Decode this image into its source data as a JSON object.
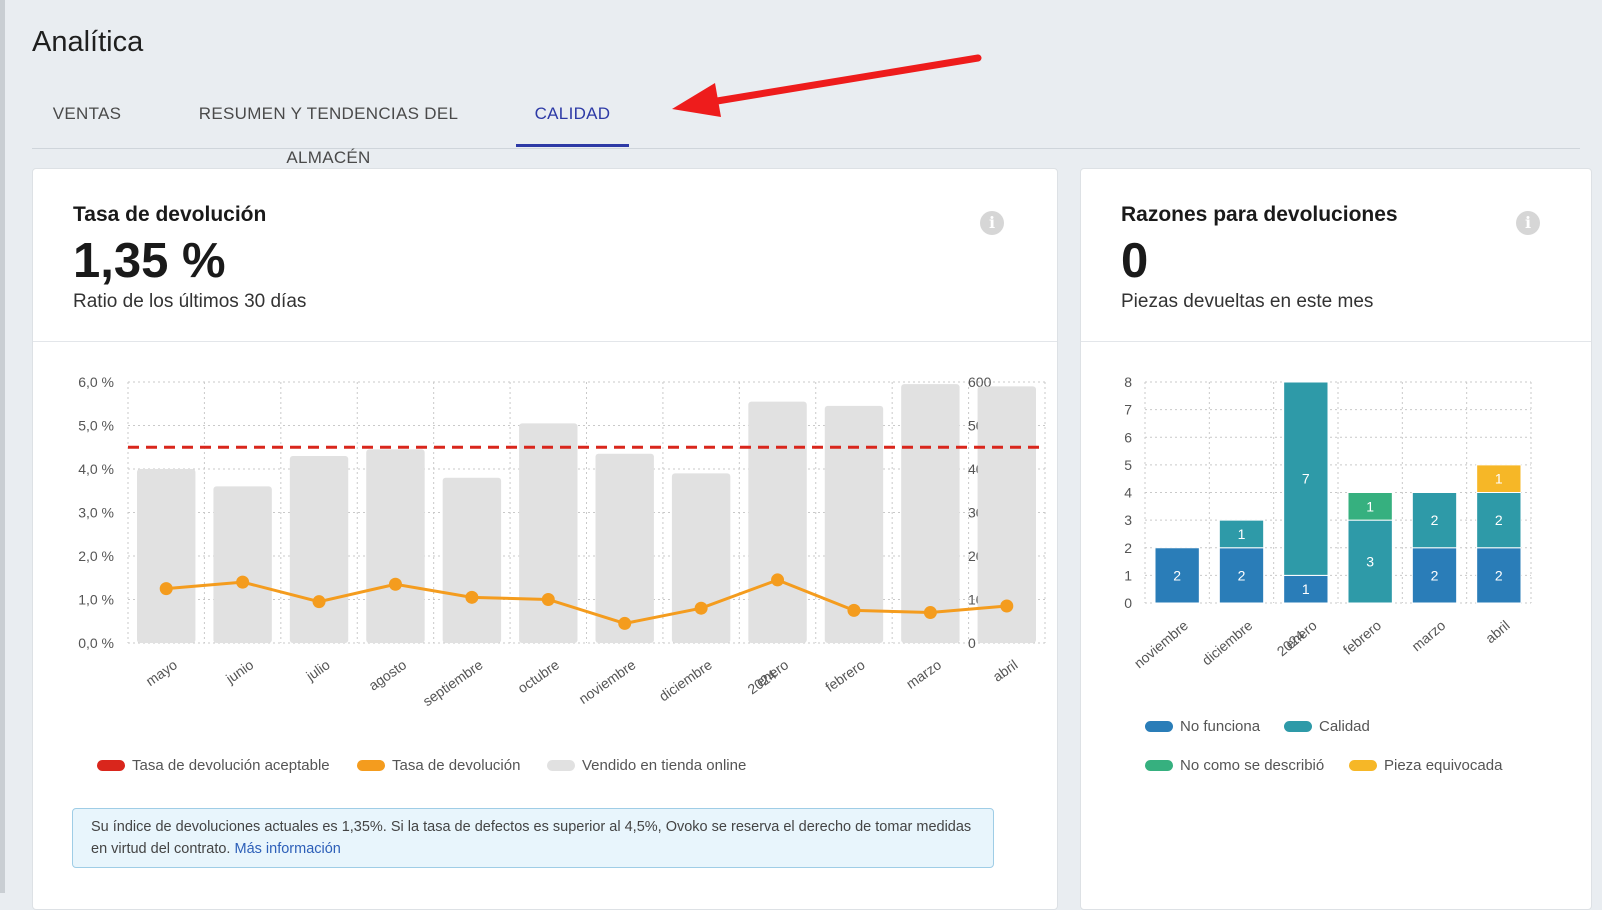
{
  "page": {
    "title": "Analítica"
  },
  "tabs": [
    {
      "label": "VENTAS",
      "active": false
    },
    {
      "label": "RESUMEN Y TENDENCIAS DEL ALMACÉN",
      "active": false
    },
    {
      "label": "CALIDAD",
      "active": true
    }
  ],
  "return_rate_card": {
    "title": "Tasa de devolución",
    "value": "1,35 %",
    "subtitle": "Ratio de los últimos 30 días",
    "info_icon": "info-icon",
    "legend": [
      {
        "label": "Tasa de devolución aceptable",
        "color": "#d9261c"
      },
      {
        "label": "Tasa de devolución",
        "color": "#f49c1e"
      },
      {
        "label": "Vendido en tienda online",
        "color": "#e1e1e1"
      }
    ],
    "notice": {
      "text": "Su índice de devoluciones actuales es 1,35%. Si la tasa de defectos es superior al 4,5%, Ovoko se reserva el derecho de tomar medidas en virtud del contrato.",
      "link": "Más información"
    }
  },
  "reasons_card": {
    "title": "Razones para devoluciones",
    "value": "0",
    "subtitle": "Piezas devueltas en este mes",
    "info_icon": "info-icon",
    "legend": [
      {
        "label": "No funciona",
        "color": "#2a7db8"
      },
      {
        "label": "Calidad",
        "color": "#2e9aa8"
      },
      {
        "label": "No como se describió",
        "color": "#36b07f"
      },
      {
        "label": "Pieza equivocada",
        "color": "#f6b727"
      }
    ]
  },
  "chart_data": [
    {
      "type": "bar",
      "categories": [
        "mayo",
        "junio",
        "julio",
        "agosto",
        "septiembre",
        "octubre",
        "noviembre",
        "diciembre",
        "enero 2024",
        "febrero",
        "marzo",
        "abril"
      ],
      "category_labels": [
        [
          "mayo"
        ],
        [
          "junio"
        ],
        [
          "julio"
        ],
        [
          "agosto"
        ],
        [
          "septiembre"
        ],
        [
          "octubre"
        ],
        [
          "noviembre"
        ],
        [
          "diciembre"
        ],
        [
          "enero",
          "2024"
        ],
        [
          "febrero"
        ],
        [
          "marzo"
        ],
        [
          "abril"
        ]
      ],
      "series": [
        {
          "name": "Vendido en tienda online",
          "type": "bar",
          "axis": "right",
          "color": "#e1e1e1",
          "values": [
            400,
            360,
            430,
            445,
            380,
            505,
            435,
            390,
            555,
            545,
            595,
            590
          ]
        },
        {
          "name": "Tasa de devolución",
          "type": "line",
          "axis": "left",
          "color": "#f49c1e",
          "values": [
            1.25,
            1.4,
            0.95,
            1.35,
            1.05,
            1.0,
            0.45,
            0.8,
            1.45,
            0.75,
            0.7,
            0.85
          ]
        },
        {
          "name": "Tasa de devolución aceptable",
          "type": "threshold",
          "axis": "left",
          "color": "#d9261c",
          "value": 4.5
        }
      ],
      "left_axis": {
        "ylim": [
          0,
          6
        ],
        "ticks": [
          "0,0 %",
          "1,0 %",
          "2,0 %",
          "3,0 %",
          "4,0 %",
          "5,0 %",
          "6,0 %"
        ]
      },
      "right_axis": {
        "ylim": [
          0,
          600
        ],
        "ticks": [
          "0",
          "100",
          "200",
          "300",
          "400",
          "500",
          "600"
        ]
      },
      "grid": true,
      "legend_position": "bottom"
    },
    {
      "type": "bar",
      "stacked": true,
      "categories": [
        "noviembre",
        "diciembre",
        "enero 2024",
        "febrero",
        "marzo",
        "abril"
      ],
      "category_labels": [
        [
          "noviembre"
        ],
        [
          "diciembre"
        ],
        [
          "enero",
          "2024"
        ],
        [
          "febrero"
        ],
        [
          "marzo"
        ],
        [
          "abril"
        ]
      ],
      "series": [
        {
          "name": "No funciona",
          "color": "#2a7db8",
          "values": [
            2,
            2,
            1,
            0,
            2,
            2
          ]
        },
        {
          "name": "Calidad",
          "color": "#2e9aa8",
          "values": [
            0,
            1,
            7,
            3,
            2,
            2
          ]
        },
        {
          "name": "No como se describió",
          "color": "#36b07f",
          "values": [
            0,
            0,
            0,
            1,
            0,
            0
          ]
        },
        {
          "name": "Pieza equivocada",
          "color": "#f6b727",
          "values": [
            0,
            0,
            0,
            0,
            0,
            1
          ]
        }
      ],
      "ylim": [
        0,
        8
      ],
      "ticks": [
        "0",
        "1",
        "2",
        "3",
        "4",
        "5",
        "6",
        "7",
        "8"
      ],
      "grid": true,
      "legend_position": "bottom"
    }
  ]
}
